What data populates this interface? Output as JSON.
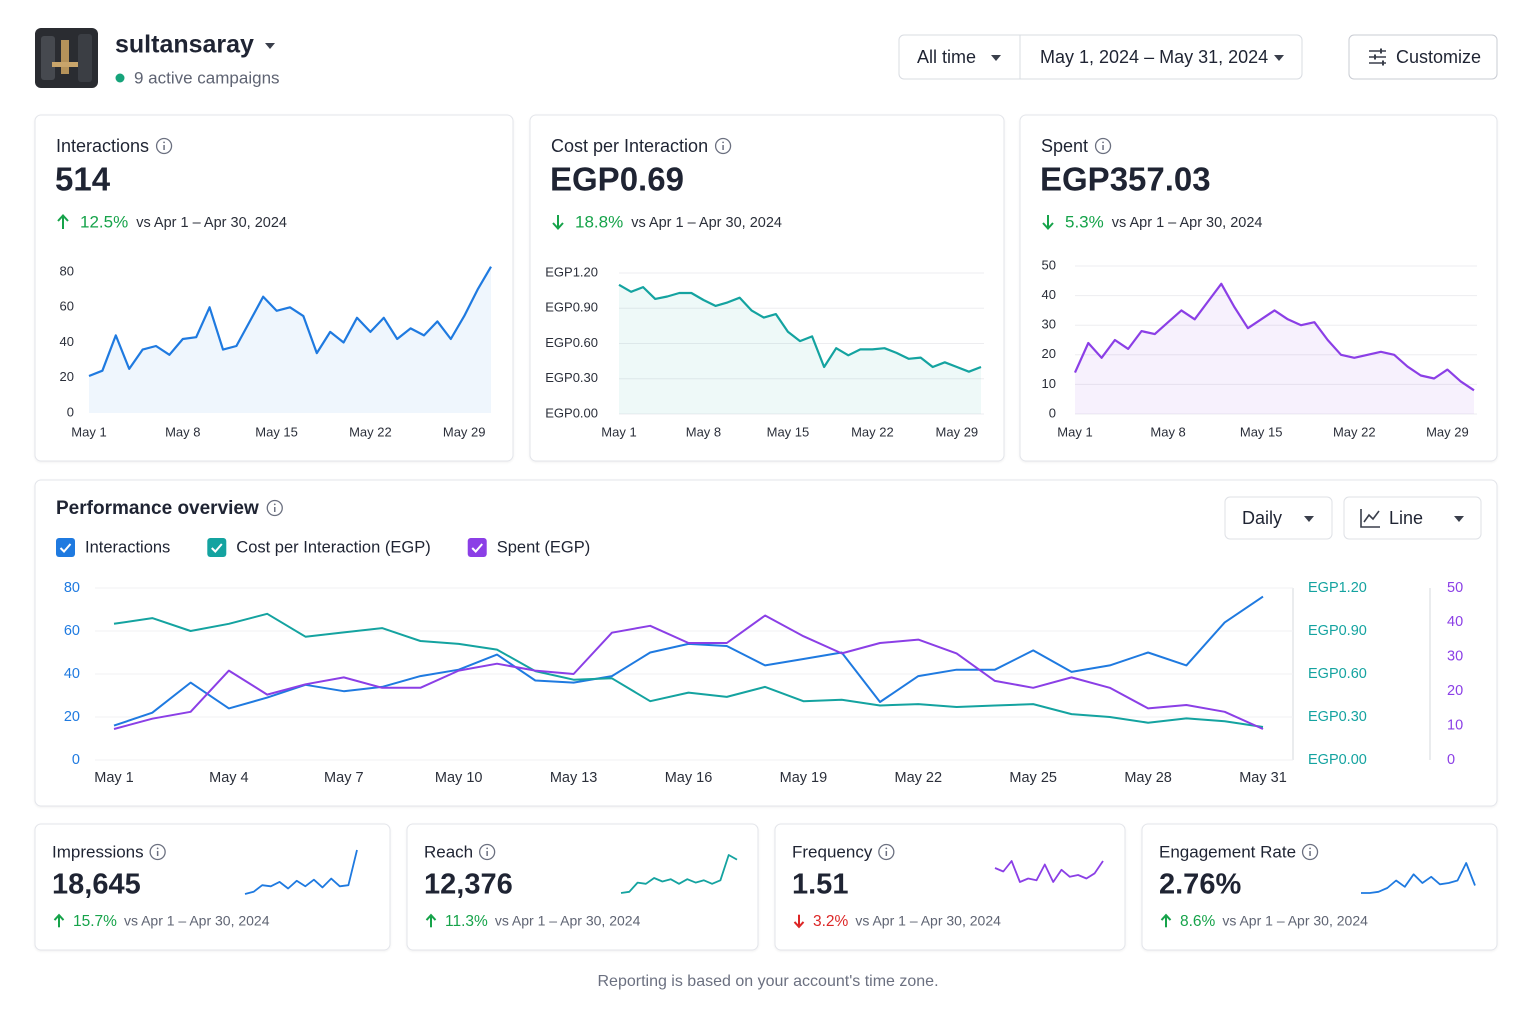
{
  "header": {
    "account": "sultansaray",
    "status": "9 active campaigns",
    "range_preset": "All time",
    "date_range": "May 1, 2024 – May 31, 2024",
    "customize": "Customize"
  },
  "kpis": [
    {
      "title": "Interactions",
      "value": "514",
      "change": "12.5%",
      "trend": "up",
      "change_color": "#16a34a",
      "comparison": "vs Apr 1 – Apr 30, 2024",
      "chart": {
        "type": "line",
        "color": "#1f7ae0",
        "categories": [
          "May 1",
          null,
          null,
          null,
          null,
          null,
          null,
          "May 8",
          null,
          null,
          null,
          null,
          null,
          null,
          "May 15",
          null,
          null,
          null,
          null,
          null,
          null,
          "May 22",
          null,
          null,
          null,
          null,
          null,
          null,
          "May 29",
          null,
          null
        ],
        "values": [
          21,
          24,
          44,
          25,
          36,
          38,
          33,
          42,
          43,
          60,
          36,
          38,
          52,
          66,
          58,
          60,
          55,
          34,
          46,
          40,
          54,
          46,
          54,
          42,
          48,
          44,
          52,
          42,
          55,
          70,
          83
        ],
        "ylim": [
          0,
          80
        ],
        "yticks": [
          0,
          20,
          40,
          60,
          80
        ],
        "grid": false
      }
    },
    {
      "title": "Cost per Interaction",
      "value": "EGP0.69",
      "change": "18.8%",
      "trend": "down",
      "change_color": "#16a34a",
      "comparison": "vs Apr 1 – Apr 30, 2024",
      "chart": {
        "type": "line",
        "color": "#14a3a0",
        "categories": [
          "May 1",
          null,
          null,
          null,
          null,
          null,
          null,
          "May 8",
          null,
          null,
          null,
          null,
          null,
          null,
          "May 15",
          null,
          null,
          null,
          null,
          null,
          null,
          "May 22",
          null,
          null,
          null,
          null,
          null,
          null,
          "May 29",
          null,
          null
        ],
        "values": [
          1.1,
          1.04,
          1.08,
          0.98,
          1.0,
          1.03,
          1.03,
          0.97,
          0.92,
          0.95,
          0.99,
          0.88,
          0.82,
          0.85,
          0.7,
          0.62,
          0.66,
          0.4,
          0.56,
          0.5,
          0.55,
          0.55,
          0.56,
          0.52,
          0.47,
          0.48,
          0.4,
          0.44,
          0.4,
          0.36,
          0.4
        ],
        "ylim": [
          0,
          1.2
        ],
        "yticks": [
          {
            "value": 0,
            "label": "EGP0.00"
          },
          {
            "value": 0.3,
            "label": "EGP0.30"
          },
          {
            "value": 0.6,
            "label": "EGP0.60"
          },
          {
            "value": 0.9,
            "label": "EGP0.90"
          },
          {
            "value": 1.2,
            "label": "EGP1.20"
          }
        ],
        "grid": true
      }
    },
    {
      "title": "Spent",
      "value": "EGP357.03",
      "change": "5.3%",
      "trend": "down",
      "change_color": "#16a34a",
      "comparison": "vs Apr 1 – Apr 30, 2024",
      "chart": {
        "type": "line",
        "color": "#8b3fe6",
        "categories": [
          "May 1",
          null,
          null,
          null,
          null,
          null,
          null,
          "May 8",
          null,
          null,
          null,
          null,
          null,
          null,
          "May 15",
          null,
          null,
          null,
          null,
          null,
          null,
          "May 22",
          null,
          null,
          null,
          null,
          null,
          null,
          "May 29",
          null,
          null
        ],
        "values": [
          14,
          24,
          19,
          25,
          22,
          28,
          27,
          31,
          35,
          32,
          38,
          44,
          36,
          29,
          32,
          35,
          32,
          30,
          31,
          25,
          20,
          19,
          20,
          21,
          20,
          16,
          13,
          12,
          15,
          11,
          8
        ],
        "ylim": [
          0,
          50
        ],
        "yticks": [
          0,
          10,
          20,
          30,
          40,
          50
        ],
        "grid": true
      }
    }
  ],
  "performance": {
    "title": "Performance overview",
    "interval": "Daily",
    "view": "Line",
    "chart_data": {
      "type": "line",
      "categories": [
        "May 1",
        null,
        null,
        "May 4",
        null,
        null,
        "May 7",
        null,
        null,
        "May 10",
        null,
        null,
        "May 13",
        null,
        null,
        "May 16",
        null,
        null,
        "May 19",
        null,
        null,
        "May 22",
        null,
        null,
        "May 25",
        null,
        null,
        "May 28",
        null,
        null,
        "May 31"
      ],
      "series": [
        {
          "name": "Interactions",
          "color": "#1f7ae0",
          "axis": "y",
          "values": [
            16,
            22,
            36,
            24,
            29,
            35,
            32,
            34,
            39,
            42,
            49,
            37,
            36,
            39,
            50,
            54,
            53,
            44,
            47,
            50,
            27,
            39,
            42,
            42,
            51,
            41,
            44,
            50,
            44,
            64,
            76
          ]
        },
        {
          "name": "Cost per Interaction (EGP)",
          "color": "#14a3a0",
          "axis": "y2",
          "values": [
            0.95,
            0.99,
            0.9,
            0.95,
            1.02,
            0.86,
            0.89,
            0.92,
            0.83,
            0.81,
            0.77,
            0.62,
            0.56,
            0.57,
            0.41,
            0.47,
            0.44,
            0.51,
            0.41,
            0.42,
            0.38,
            0.39,
            0.37,
            0.38,
            0.39,
            0.32,
            0.3,
            0.26,
            0.29,
            0.27,
            0.23
          ]
        },
        {
          "name": "Spent (EGP)",
          "color": "#8b3fe6",
          "axis": "y3",
          "values": [
            9,
            12,
            14,
            26,
            19,
            22,
            24,
            21,
            21,
            26,
            28,
            26,
            25,
            37,
            39,
            34,
            34,
            42,
            36,
            31,
            34,
            35,
            31,
            23,
            21,
            24,
            21,
            15,
            16,
            14,
            9
          ]
        }
      ],
      "ylim": [
        0,
        80
      ],
      "yticks": [
        0,
        20,
        40,
        60,
        80
      ],
      "y2lim": [
        0,
        1.2
      ],
      "y2ticks": [
        {
          "value": 0,
          "label": "EGP0.00"
        },
        {
          "value": 0.3,
          "label": "EGP0.30"
        },
        {
          "value": 0.6,
          "label": "EGP0.60"
        },
        {
          "value": 0.9,
          "label": "EGP0.90"
        },
        {
          "value": 1.2,
          "label": "EGP1.20"
        }
      ],
      "y3lim": [
        0,
        50
      ],
      "y3ticks": [
        0,
        10,
        20,
        30,
        40,
        50
      ],
      "grid": true
    }
  },
  "metrics": [
    {
      "title": "Impressions",
      "value": "18,645",
      "change": "15.7%",
      "trend": "up",
      "change_color": "#16a34a",
      "comparison": "vs Apr 1 – Apr 30, 2024",
      "sparkline": {
        "type": "line",
        "color": "#1f7ae0",
        "values": [
          8,
          10,
          16,
          15,
          19,
          13,
          20,
          15,
          21,
          14,
          22,
          15,
          16,
          48
        ]
      }
    },
    {
      "title": "Reach",
      "value": "12,376",
      "change": "11.3%",
      "trend": "up",
      "change_color": "#16a34a",
      "comparison": "vs Apr 1 – Apr 30, 2024",
      "sparkline": {
        "type": "line",
        "color": "#14a3a0",
        "values": [
          5,
          6,
          14,
          13,
          18,
          15,
          17,
          13,
          17,
          14,
          16,
          13,
          16,
          38,
          34
        ]
      }
    },
    {
      "title": "Frequency",
      "value": "1.51",
      "change": "3.2%",
      "trend": "down",
      "change_color": "#dc2626",
      "comparison": "vs Apr 1 – Apr 30, 2024",
      "sparkline": {
        "type": "line",
        "color": "#8b3fe6",
        "values": [
          18,
          16,
          22,
          10,
          12,
          11,
          20,
          10,
          17,
          13,
          14,
          12,
          15,
          22
        ]
      }
    },
    {
      "title": "Engagement Rate",
      "value": "2.76%",
      "change": "8.6%",
      "trend": "up",
      "change_color": "#16a34a",
      "comparison": "vs Apr 1 – Apr 30, 2024",
      "sparkline": {
        "type": "line",
        "color": "#1f7ae0",
        "values": [
          4,
          4,
          5,
          8,
          14,
          9,
          19,
          12,
          17,
          11,
          12,
          14,
          28,
          10
        ]
      }
    }
  ],
  "footer": "Reporting is based on your account's time zone."
}
